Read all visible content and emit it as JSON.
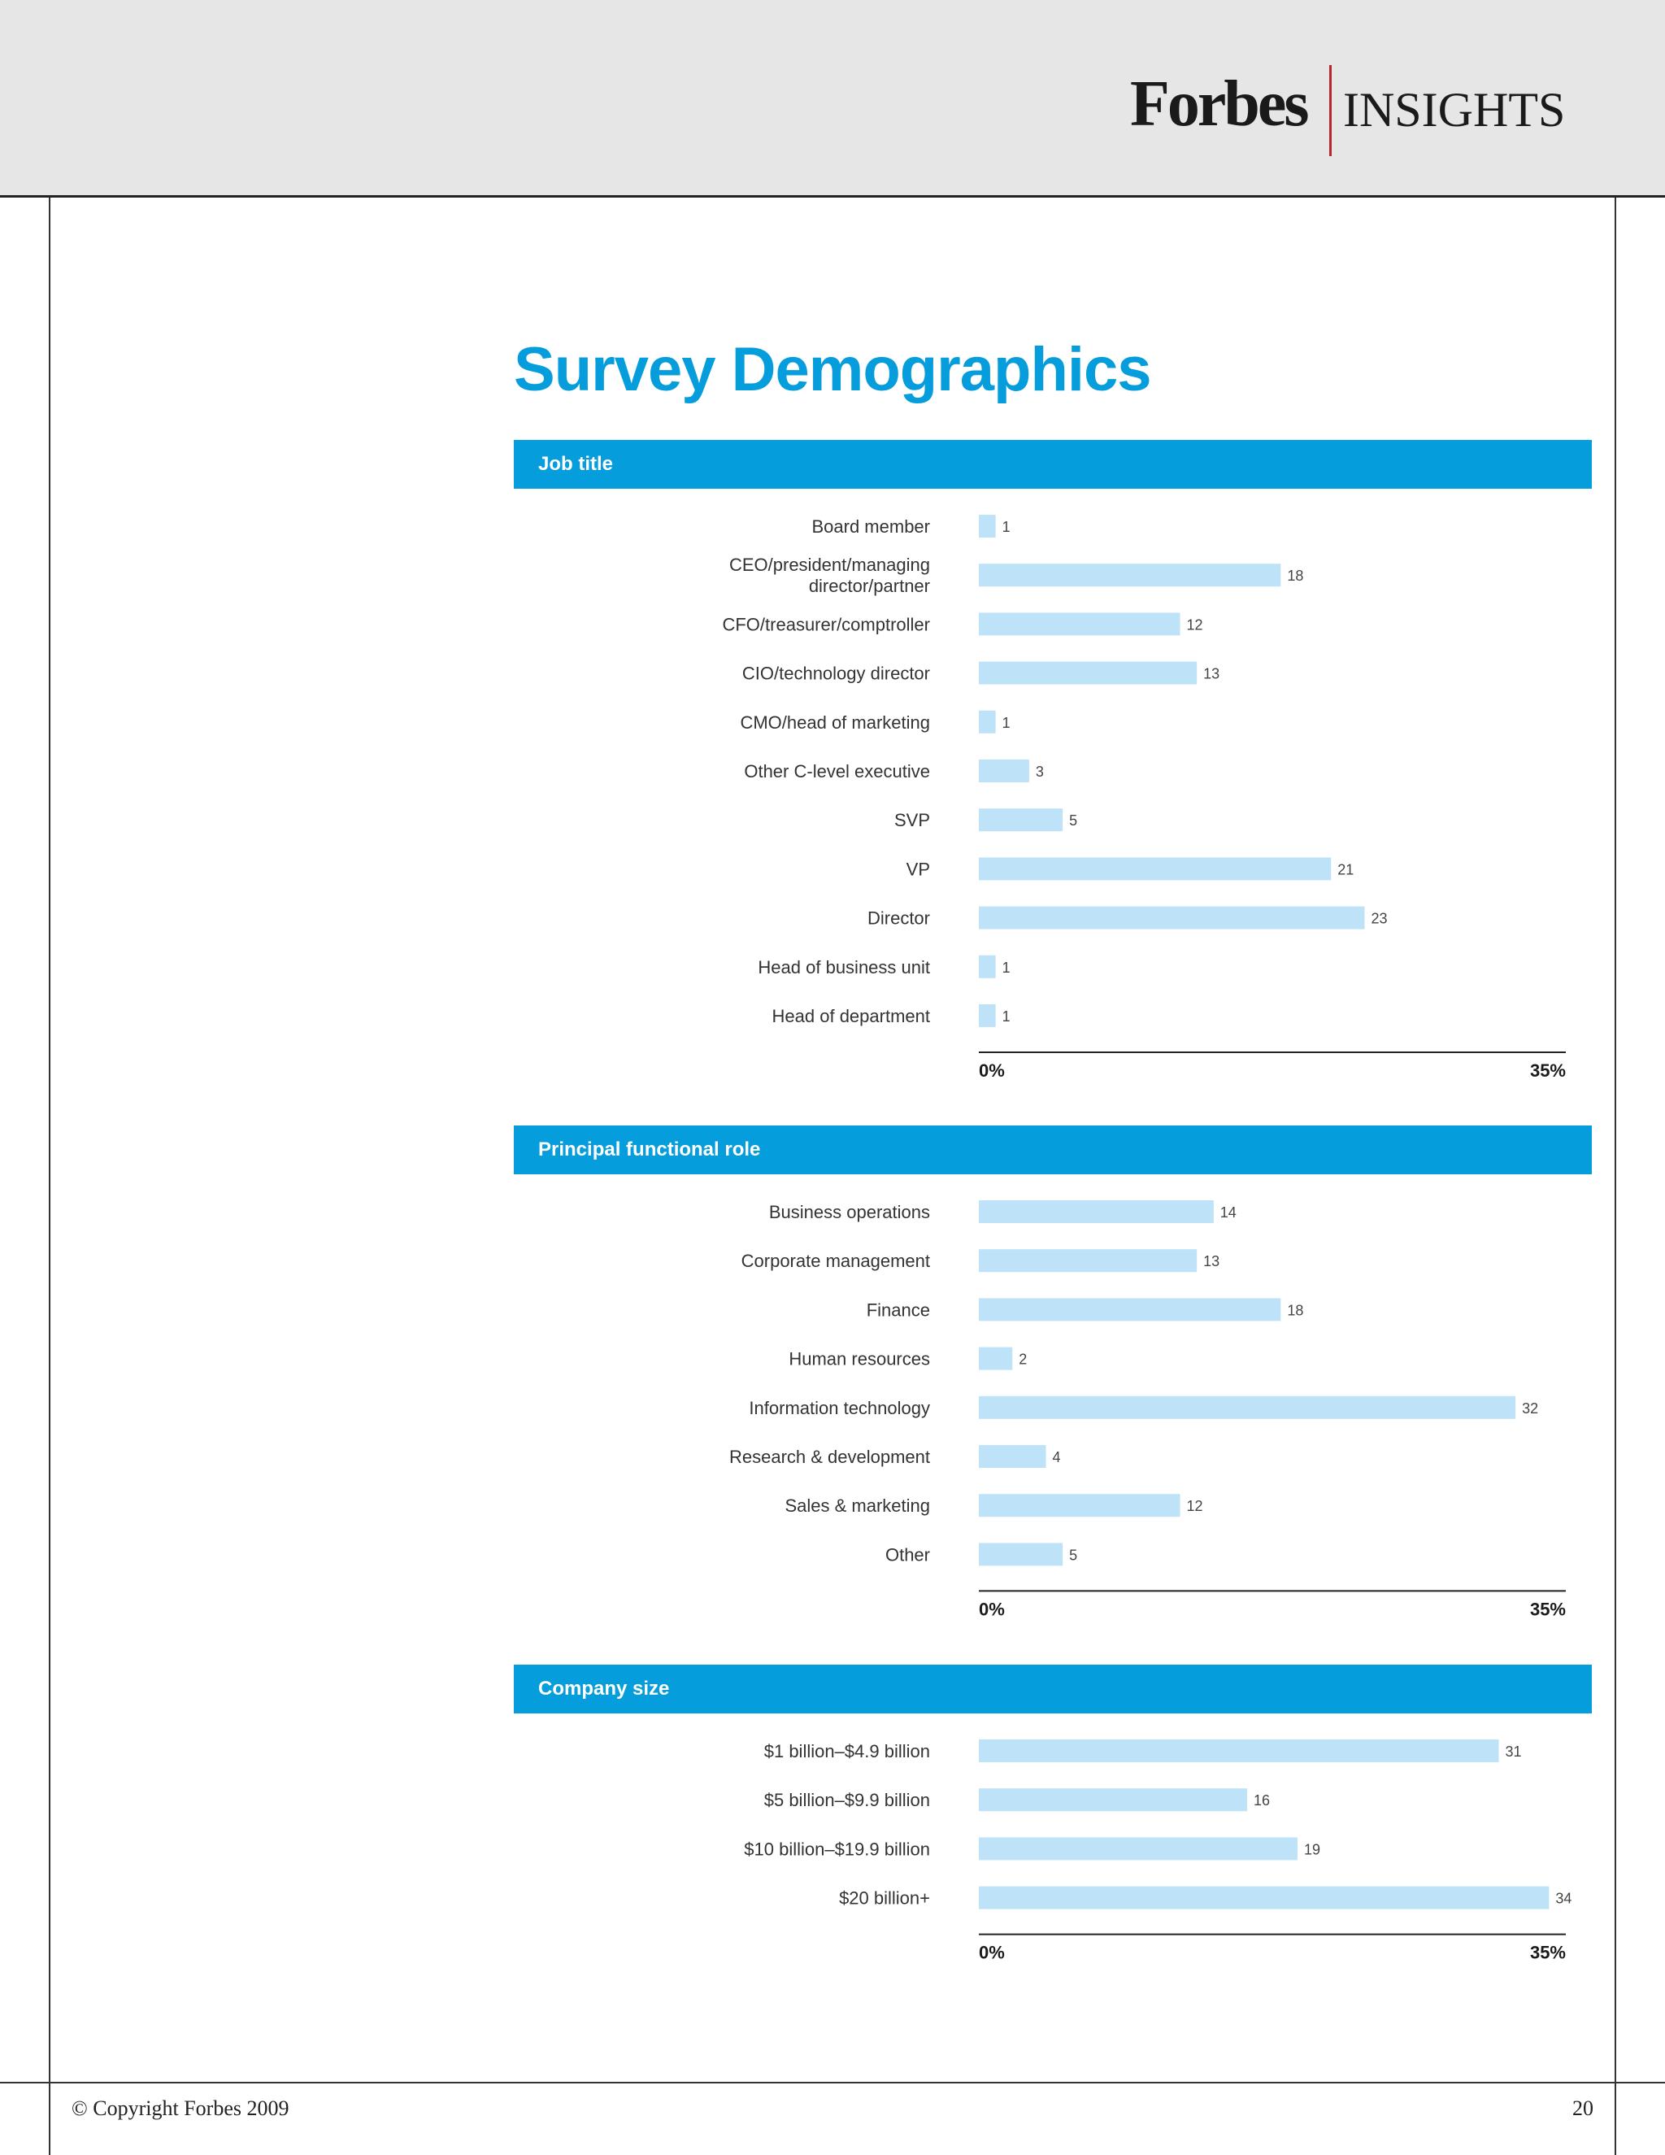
{
  "brand": {
    "name": "Forbes",
    "sub": "INSIGHTS"
  },
  "page_title": "Survey Demographics",
  "footer": {
    "copyright": "© Copyright Forbes 2009",
    "page_number": "20"
  },
  "colors": {
    "accent": "#069ddc",
    "bar": "#bee2f7",
    "header_bg": "#e6e6e7",
    "logo_rule": "#b6262d"
  },
  "chart_data": [
    {
      "type": "bar",
      "orientation": "horizontal",
      "title": "Job title",
      "categories": [
        [
          "Board member"
        ],
        [
          "CEO/president/managing",
          "director/partner"
        ],
        [
          "CFO/treasurer/comptroller"
        ],
        [
          "CIO/technology director"
        ],
        [
          "CMO/head of marketing"
        ],
        [
          "Other C-level executive"
        ],
        [
          "SVP"
        ],
        [
          "VP"
        ],
        [
          "Director"
        ],
        [
          "Head of business unit"
        ],
        [
          "Head of department"
        ]
      ],
      "values": [
        1,
        18,
        12,
        13,
        1,
        3,
        5,
        21,
        23,
        1,
        1
      ],
      "xlim": [
        0,
        35
      ],
      "axis_min_label": "0%",
      "axis_max_label": "35%"
    },
    {
      "type": "bar",
      "orientation": "horizontal",
      "title": "Principal functional role",
      "categories": [
        [
          "Business operations"
        ],
        [
          "Corporate management"
        ],
        [
          "Finance"
        ],
        [
          "Human resources"
        ],
        [
          "Information technology"
        ],
        [
          "Research & development"
        ],
        [
          "Sales & marketing"
        ],
        [
          "Other"
        ]
      ],
      "values": [
        14,
        13,
        18,
        2,
        32,
        4,
        12,
        5
      ],
      "xlim": [
        0,
        35
      ],
      "axis_min_label": "0%",
      "axis_max_label": "35%"
    },
    {
      "type": "bar",
      "orientation": "horizontal",
      "title": "Company size",
      "categories": [
        [
          "$1 billion–$4.9 billion"
        ],
        [
          "$5 billion–$9.9 billion"
        ],
        [
          "$10 billion–$19.9 billion"
        ],
        [
          "$20 billion+"
        ]
      ],
      "values": [
        31,
        16,
        19,
        34
      ],
      "xlim": [
        0,
        35
      ],
      "axis_min_label": "0%",
      "axis_max_label": "35%"
    }
  ]
}
